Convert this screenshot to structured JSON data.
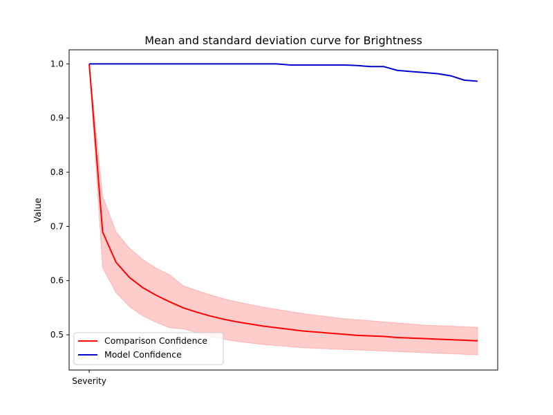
{
  "chart_data": {
    "type": "line",
    "title": "Mean and standard deviation curve for Brightness",
    "xlabel": "",
    "ylabel": "Value",
    "x_tick_labels": [
      "Severity"
    ],
    "y_ticks": [
      0.5,
      0.6,
      0.7,
      0.8,
      0.9,
      1.0
    ],
    "y_tick_labels": [
      "0.5",
      "0.6",
      "0.7",
      "0.8",
      "0.9",
      "1.0"
    ],
    "xlim": [
      -1.5,
      30.5
    ],
    "ylim": [
      0.435,
      1.026
    ],
    "grid": false,
    "legend_position": "lower-left",
    "x": [
      0,
      1,
      2,
      3,
      4,
      5,
      6,
      7,
      8,
      9,
      10,
      11,
      12,
      13,
      14,
      15,
      16,
      17,
      18,
      19,
      20,
      21,
      22,
      23,
      24,
      25,
      26,
      27,
      28,
      29
    ],
    "series": [
      {
        "name": "Comparison Confidence",
        "color": "#ff0000",
        "band_color": "#ff0000",
        "band_opacity": 0.2,
        "values": [
          1.0,
          0.69,
          0.634,
          0.606,
          0.587,
          0.573,
          0.561,
          0.55,
          0.542,
          0.535,
          0.529,
          0.524,
          0.52,
          0.516,
          0.513,
          0.51,
          0.507,
          0.505,
          0.503,
          0.501,
          0.499,
          0.498,
          0.497,
          0.495,
          0.494,
          0.493,
          0.492,
          0.491,
          0.49,
          0.489
        ],
        "lower": [
          1.0,
          0.624,
          0.578,
          0.552,
          0.535,
          0.523,
          0.513,
          0.511,
          0.504,
          0.497,
          0.492,
          0.488,
          0.485,
          0.482,
          0.48,
          0.478,
          0.476,
          0.475,
          0.474,
          0.473,
          0.472,
          0.471,
          0.47,
          0.469,
          0.468,
          0.467,
          0.466,
          0.465,
          0.464,
          0.463
        ],
        "upper": [
          1.0,
          0.756,
          0.69,
          0.66,
          0.639,
          0.623,
          0.611,
          0.591,
          0.582,
          0.574,
          0.567,
          0.561,
          0.556,
          0.551,
          0.547,
          0.543,
          0.539,
          0.536,
          0.533,
          0.53,
          0.528,
          0.526,
          0.524,
          0.522,
          0.52,
          0.518,
          0.517,
          0.516,
          0.515,
          0.514
        ]
      },
      {
        "name": "Model Confidence",
        "color": "#0000cc",
        "values": [
          1.0,
          1.0,
          1.0,
          1.0,
          1.0,
          1.0,
          1.0,
          1.0,
          1.0,
          1.0,
          1.0,
          1.0,
          1.0,
          1.0,
          1.0,
          0.998,
          0.998,
          0.998,
          0.998,
          0.998,
          0.997,
          0.995,
          0.995,
          0.988,
          0.986,
          0.984,
          0.982,
          0.978,
          0.97,
          0.968
        ]
      }
    ]
  }
}
